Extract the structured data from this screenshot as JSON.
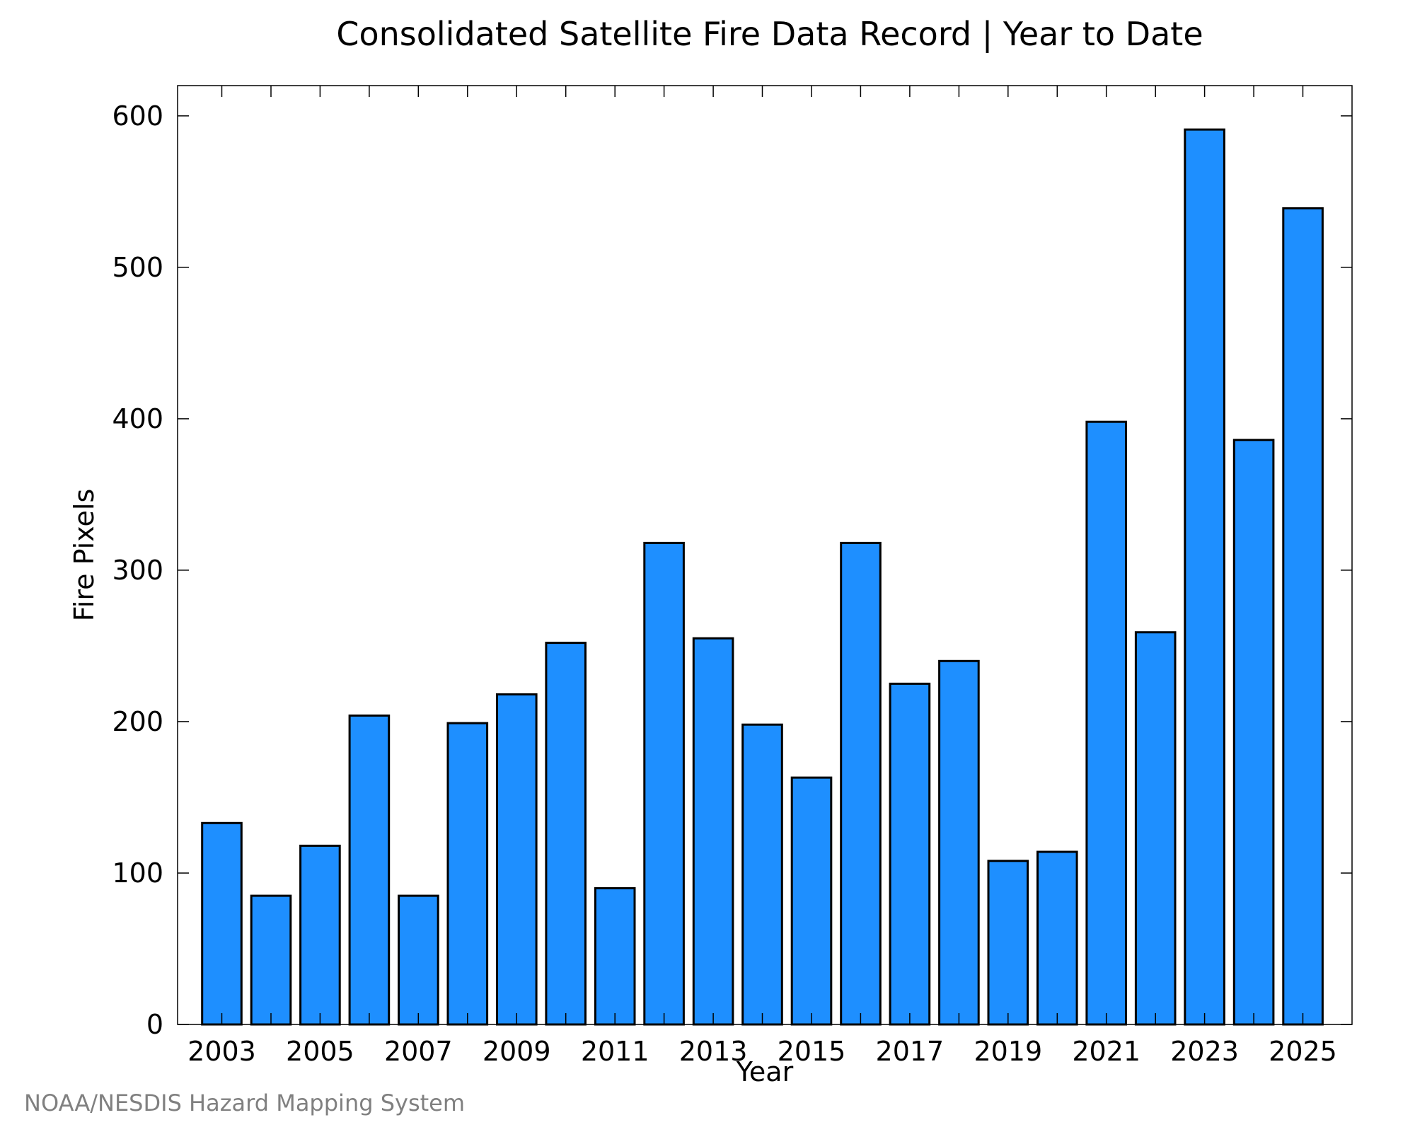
{
  "chart_data": {
    "type": "bar",
    "title": "Consolidated Satellite Fire Data Record | Year to Date",
    "xlabel": "Year",
    "ylabel": "Fire Pixels",
    "credit": "NOAA/NESDIS Hazard Mapping System",
    "categories": [
      2003,
      2004,
      2005,
      2006,
      2007,
      2008,
      2009,
      2010,
      2011,
      2012,
      2013,
      2014,
      2015,
      2016,
      2017,
      2018,
      2019,
      2020,
      2021,
      2022,
      2023,
      2024,
      2025
    ],
    "values": [
      133,
      85,
      118,
      204,
      85,
      199,
      218,
      252,
      90,
      318,
      255,
      198,
      163,
      318,
      225,
      240,
      108,
      114,
      398,
      259,
      591,
      386,
      539
    ],
    "xlim": [
      2002.1,
      2026
    ],
    "ylim": [
      0,
      620
    ],
    "xticks": [
      "2003",
      "2005",
      "2007",
      "2009",
      "2011",
      "2013",
      "2015",
      "2017",
      "2019",
      "2021",
      "2023",
      "2025"
    ],
    "yticks": [
      "0",
      "100",
      "200",
      "300",
      "400",
      "500",
      "600"
    ],
    "bar_color": "#1e8fff",
    "edge_color": "#000000",
    "grid": false,
    "legend": "none"
  }
}
